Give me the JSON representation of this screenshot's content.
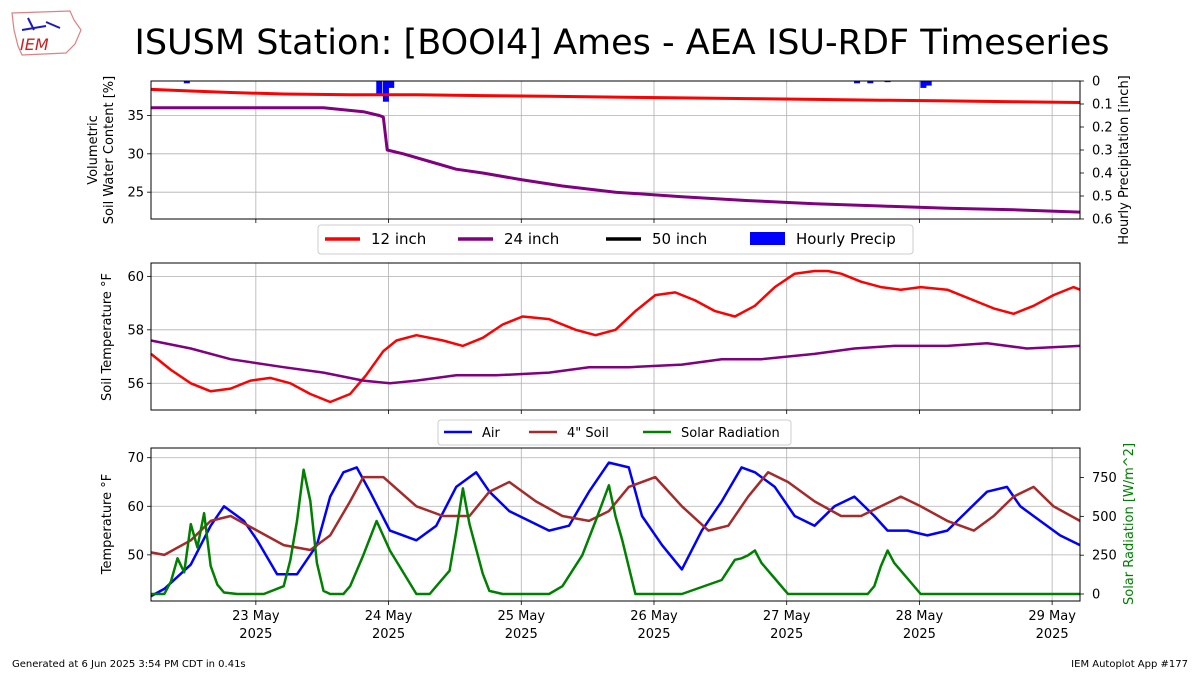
{
  "title": "ISUSM Station: [BOOI4] Ames - AEA ISU-RDF Timeseries",
  "logo_text": "IEM",
  "footer_left": "Generated at 6 Jun 2025 3:54 PM CDT in 0.41s",
  "footer_right": "IEM Autoplot App #177",
  "colors": {
    "red": "#ff0000",
    "purple": "#800080",
    "black": "#000000",
    "blue": "#0000ff",
    "brown": "#a52a2a",
    "green": "#008000"
  },
  "chart_data": [
    {
      "type": "line",
      "name": "soil moisture",
      "ylabel": [
        "Volumetric",
        "Soil Water Content [%]"
      ],
      "y2label": "Hourly Precipitation [inch]",
      "ylim": [
        21.5,
        39.5
      ],
      "yticks": [
        25,
        30,
        35
      ],
      "y2lim": [
        0.6,
        0
      ],
      "y2ticks": [
        0,
        0.1,
        0.2,
        0.3,
        0.4,
        0.5,
        0.6
      ],
      "y2ticklabels": [
        "0",
        "0.1",
        "0.2",
        "0.3",
        "0.4",
        "0.5",
        "0.6"
      ],
      "legend": [
        "12 inch",
        "24 inch",
        "50 inch",
        "Hourly Precip"
      ],
      "legend_location": "below",
      "grid": true,
      "series": [
        {
          "name": "12 inch",
          "color": "red",
          "x": [
            0,
            0.3,
            0.6,
            1,
            1.5,
            2,
            2.5,
            3,
            3.5,
            4,
            4.5,
            5,
            5.5,
            6,
            6.5,
            7
          ],
          "values": [
            38.4,
            38.2,
            38.0,
            37.8,
            37.7,
            37.7,
            37.6,
            37.5,
            37.4,
            37.3,
            37.2,
            37.1,
            37.0,
            36.9,
            36.8,
            36.7
          ]
        },
        {
          "name": "24 inch",
          "color": "purple",
          "x": [
            0,
            0.5,
            1,
            1.3,
            1.6,
            1.72,
            1.75,
            1.78,
            1.9,
            2.1,
            2.3,
            2.5,
            2.8,
            3.1,
            3.5,
            4,
            4.5,
            5,
            5.5,
            6,
            6.5,
            7
          ],
          "values": [
            36.0,
            36.0,
            36.0,
            36.0,
            35.5,
            35.0,
            34.8,
            30.5,
            30.0,
            29.0,
            28.0,
            27.5,
            26.6,
            25.8,
            25.0,
            24.4,
            23.9,
            23.5,
            23.2,
            22.9,
            22.7,
            22.4
          ]
        },
        {
          "name": "50 inch",
          "color": "black",
          "x": [],
          "values": []
        }
      ],
      "precip": {
        "name": "Hourly Precip",
        "color": "blue",
        "x": [
          0.27,
          1.72,
          1.77,
          1.81,
          5.32,
          5.42,
          5.55,
          5.82,
          5.86
        ],
        "values": [
          0.01,
          0.06,
          0.09,
          0.03,
          0.01,
          0.01,
          0.005,
          0.03,
          0.02
        ]
      }
    },
    {
      "type": "line",
      "name": "soil temperature",
      "ylabel": "Soil Temperature °F",
      "ylim": [
        55.0,
        60.5
      ],
      "yticks": [
        56,
        58,
        60
      ],
      "grid": true,
      "series": [
        {
          "name": "12 inch",
          "color": "red",
          "x": [
            0,
            0.15,
            0.3,
            0.45,
            0.6,
            0.75,
            0.9,
            1.05,
            1.2,
            1.35,
            1.5,
            1.62,
            1.75,
            1.85,
            2,
            2.2,
            2.35,
            2.5,
            2.65,
            2.8,
            3,
            3.2,
            3.35,
            3.5,
            3.65,
            3.8,
            3.95,
            4.1,
            4.25,
            4.4,
            4.55,
            4.7,
            4.85,
            5,
            5.1,
            5.2,
            5.35,
            5.5,
            5.65,
            5.8,
            6,
            6.2,
            6.35,
            6.5,
            6.65,
            6.8,
            6.95,
            7
          ],
          "values": [
            57.1,
            56.5,
            56.0,
            55.7,
            55.8,
            56.1,
            56.2,
            56.0,
            55.6,
            55.3,
            55.6,
            56.3,
            57.2,
            57.6,
            57.8,
            57.6,
            57.4,
            57.7,
            58.2,
            58.5,
            58.4,
            58.0,
            57.8,
            58.0,
            58.7,
            59.3,
            59.4,
            59.1,
            58.7,
            58.5,
            58.9,
            59.6,
            60.1,
            60.2,
            60.2,
            60.1,
            59.8,
            59.6,
            59.5,
            59.6,
            59.5,
            59.1,
            58.8,
            58.6,
            58.9,
            59.3,
            59.6,
            59.5
          ]
        },
        {
          "name": "24 inch",
          "color": "purple",
          "x": [
            0,
            0.3,
            0.6,
            1,
            1.3,
            1.6,
            1.8,
            2,
            2.3,
            2.6,
            3,
            3.3,
            3.6,
            4,
            4.3,
            4.6,
            5,
            5.3,
            5.6,
            6,
            6.3,
            6.6,
            7
          ],
          "values": [
            57.6,
            57.3,
            56.9,
            56.6,
            56.4,
            56.1,
            56.0,
            56.1,
            56.3,
            56.3,
            56.4,
            56.6,
            56.6,
            56.7,
            56.9,
            56.9,
            57.1,
            57.3,
            57.4,
            57.4,
            57.5,
            57.3,
            57.4
          ]
        }
      ]
    },
    {
      "type": "line",
      "name": "temperature and solar",
      "ylabel": "Temperature °F",
      "y2label": "Solar Radiation [W/m^2]",
      "ylim": [
        40.5,
        72.0
      ],
      "yticks": [
        50,
        60,
        70
      ],
      "y2lim": [
        -45,
        940
      ],
      "y2ticks": [
        0,
        250,
        500,
        750
      ],
      "legend": [
        "Air",
        "4\" Soil",
        "Solar Radiation"
      ],
      "legend_location": "top",
      "grid": true,
      "xticks": [
        0.79,
        1.79,
        2.79,
        3.79,
        4.79,
        5.79,
        6.79
      ],
      "xticklabels": [
        [
          "23 May",
          "2025"
        ],
        [
          "24 May",
          "2025"
        ],
        [
          "25 May",
          "2025"
        ],
        [
          "26 May",
          "2025"
        ],
        [
          "27 May",
          "2025"
        ],
        [
          "28 May",
          "2025"
        ],
        [
          "29 May",
          "2025"
        ]
      ],
      "series": [
        {
          "name": "Air",
          "color": "blue",
          "x": [
            0,
            0.1,
            0.3,
            0.45,
            0.55,
            0.7,
            0.8,
            0.95,
            1.1,
            1.25,
            1.35,
            1.45,
            1.55,
            1.65,
            1.8,
            2,
            2.15,
            2.3,
            2.45,
            2.55,
            2.7,
            2.85,
            3,
            3.15,
            3.3,
            3.45,
            3.6,
            3.7,
            3.85,
            4,
            4.15,
            4.3,
            4.45,
            4.55,
            4.7,
            4.85,
            5,
            5.15,
            5.3,
            5.45,
            5.55,
            5.7,
            5.85,
            6,
            6.15,
            6.3,
            6.45,
            6.55,
            6.7,
            6.85,
            7
          ],
          "values": [
            41.5,
            43,
            48,
            56,
            60,
            57,
            53,
            46,
            46,
            52,
            62,
            67,
            68,
            63,
            55,
            53,
            56,
            64,
            67,
            63,
            59,
            57,
            55,
            56,
            63,
            69,
            68,
            58,
            52,
            47,
            55,
            61,
            68,
            67,
            64,
            58,
            56,
            60,
            62,
            58,
            55,
            55,
            54,
            55,
            59,
            63,
            64,
            60,
            57,
            54,
            52
          ]
        },
        {
          "name": "4\" Soil",
          "color": "brown",
          "x": [
            0,
            0.1,
            0.3,
            0.45,
            0.6,
            0.8,
            1,
            1.2,
            1.35,
            1.5,
            1.6,
            1.75,
            2,
            2.2,
            2.4,
            2.55,
            2.7,
            2.9,
            3.1,
            3.3,
            3.45,
            3.6,
            3.8,
            4,
            4.2,
            4.35,
            4.5,
            4.65,
            4.8,
            5,
            5.2,
            5.35,
            5.5,
            5.65,
            5.8,
            6,
            6.2,
            6.35,
            6.5,
            6.65,
            6.8,
            7
          ],
          "values": [
            50.5,
            50,
            53,
            57,
            58,
            55,
            52,
            51,
            54,
            61,
            66,
            66,
            60,
            58,
            58,
            63,
            65,
            61,
            58,
            57,
            59,
            64,
            66,
            60,
            55,
            56,
            62,
            67,
            65,
            61,
            58,
            58,
            60,
            62,
            60,
            57,
            55,
            58,
            62,
            64,
            60,
            57
          ]
        },
        {
          "name": "Solar Radiation",
          "color": "green",
          "x": [
            0,
            0.1,
            0.15,
            0.2,
            0.25,
            0.3,
            0.35,
            0.4,
            0.45,
            0.5,
            0.55,
            0.65,
            0.75,
            0.85,
            1,
            1.05,
            1.1,
            1.15,
            1.2,
            1.25,
            1.3,
            1.35,
            1.4,
            1.45,
            1.5,
            1.6,
            1.7,
            1.8,
            2,
            2.1,
            2.15,
            2.25,
            2.3,
            2.35,
            2.4,
            2.5,
            2.55,
            2.65,
            2.8,
            3,
            3.1,
            3.25,
            3.35,
            3.45,
            3.5,
            3.55,
            3.65,
            3.75,
            3.85,
            4,
            4.3,
            4.4,
            4.45,
            4.5,
            4.55,
            4.6,
            4.65,
            4.7,
            4.8,
            4.9,
            5,
            5.15,
            5.3,
            5.4,
            5.45,
            5.5,
            5.55,
            5.6,
            5.7,
            5.8,
            6,
            6.3,
            6.35,
            6.4,
            6.45,
            6.5,
            6.55,
            6.6,
            6.65,
            6.7,
            6.8,
            6.85,
            7
          ],
          "values": [
            0,
            0,
            80,
            230,
            140,
            450,
            300,
            520,
            180,
            60,
            10,
            0,
            0,
            0,
            50,
            220,
            470,
            800,
            600,
            200,
            20,
            0,
            0,
            0,
            50,
            250,
            470,
            280,
            0,
            0,
            50,
            150,
            400,
            680,
            450,
            130,
            20,
            0,
            0,
            0,
            50,
            250,
            470,
            700,
            500,
            350,
            0,
            0,
            0,
            0,
            90,
            220,
            230,
            250,
            280,
            200,
            150,
            100,
            0,
            0,
            0,
            0,
            0,
            0,
            50,
            180,
            280,
            200,
            100,
            0,
            0,
            0,
            0,
            0,
            0,
            0,
            0,
            0,
            0,
            0,
            0,
            0,
            0
          ]
        }
      ]
    }
  ]
}
